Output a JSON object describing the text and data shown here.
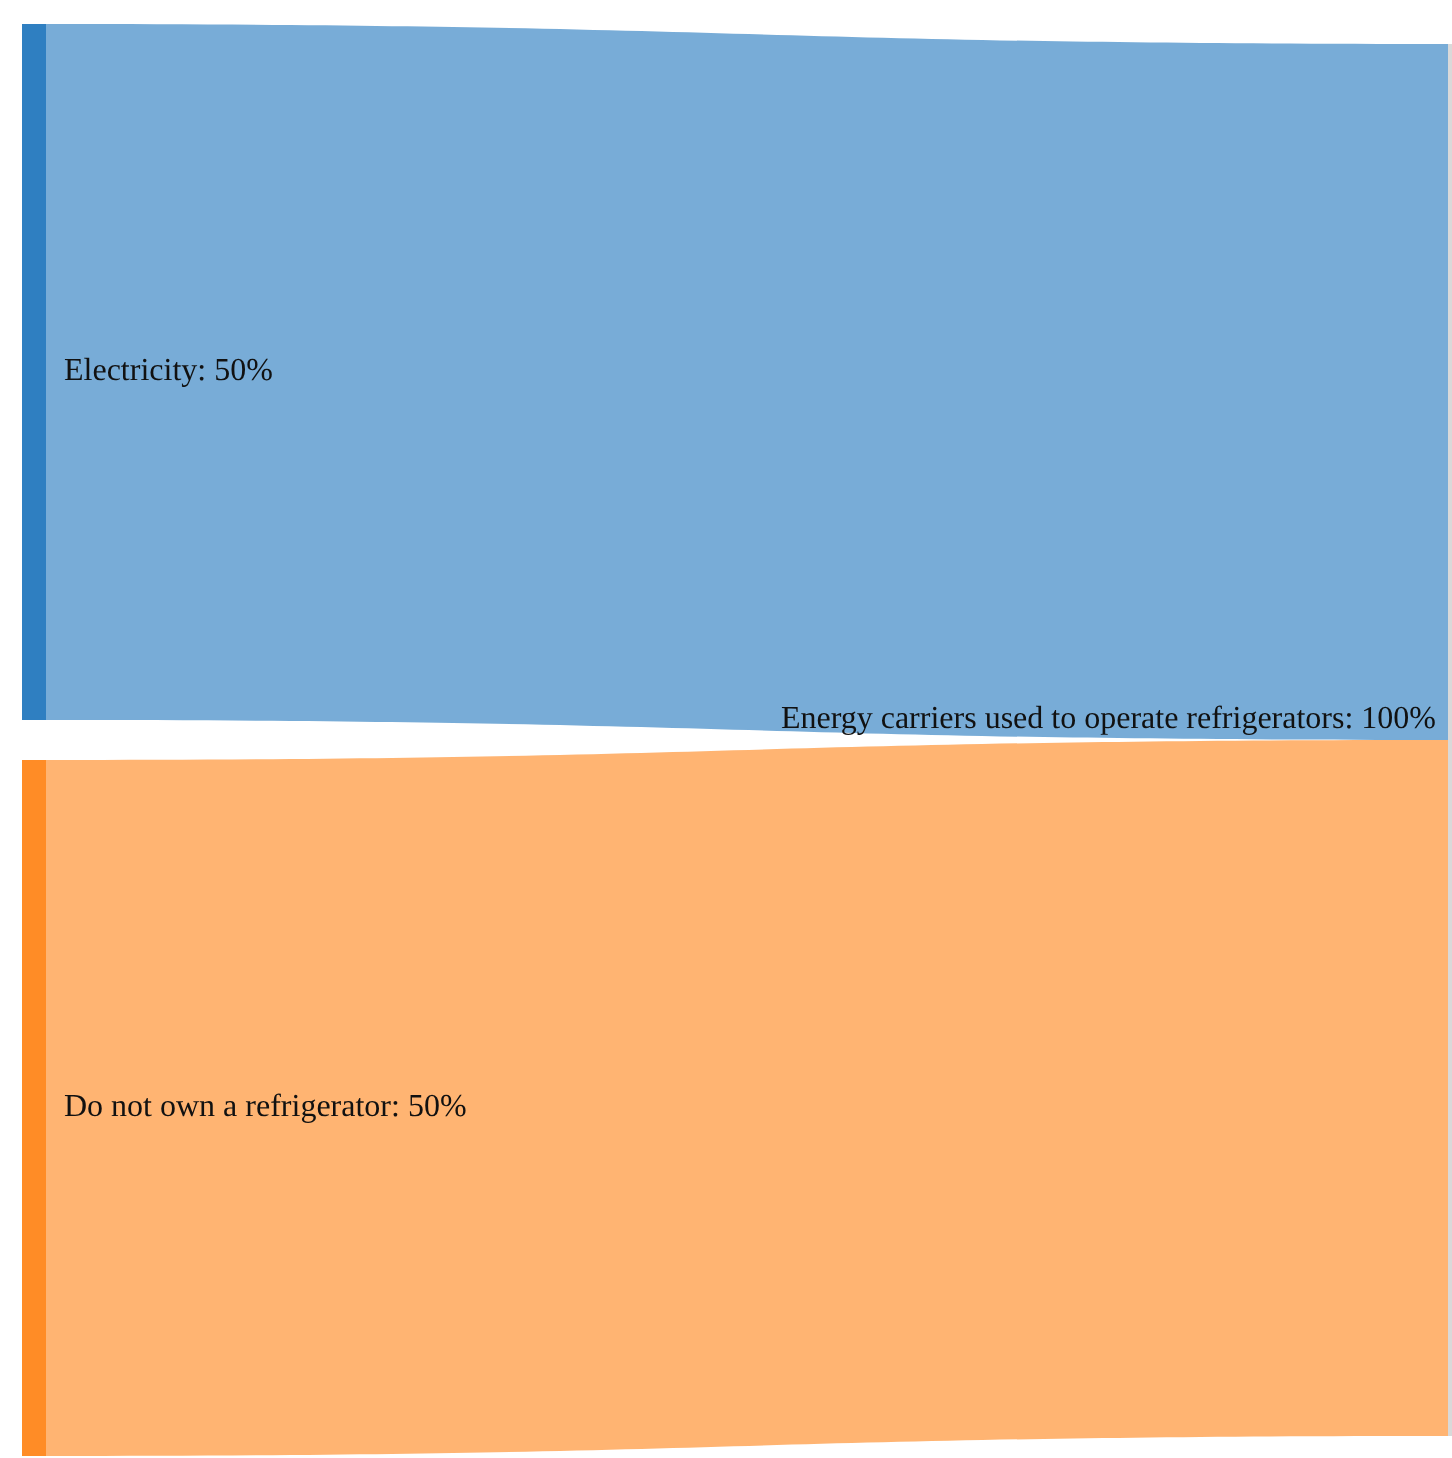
{
  "chart_data": {
    "type": "other",
    "categories": [
      "Electricity",
      "Do not own a refrigerator",
      "Energy carriers used to operate refrigerators"
    ],
    "values": [
      50,
      50,
      100
    ],
    "colors": [
      "#2f7fc1",
      "#ff8c26",
      "#d9d9d9"
    ],
    "value_labels": [
      ": 50%",
      ": 50%",
      ": 100%"
    ]
  }
}
